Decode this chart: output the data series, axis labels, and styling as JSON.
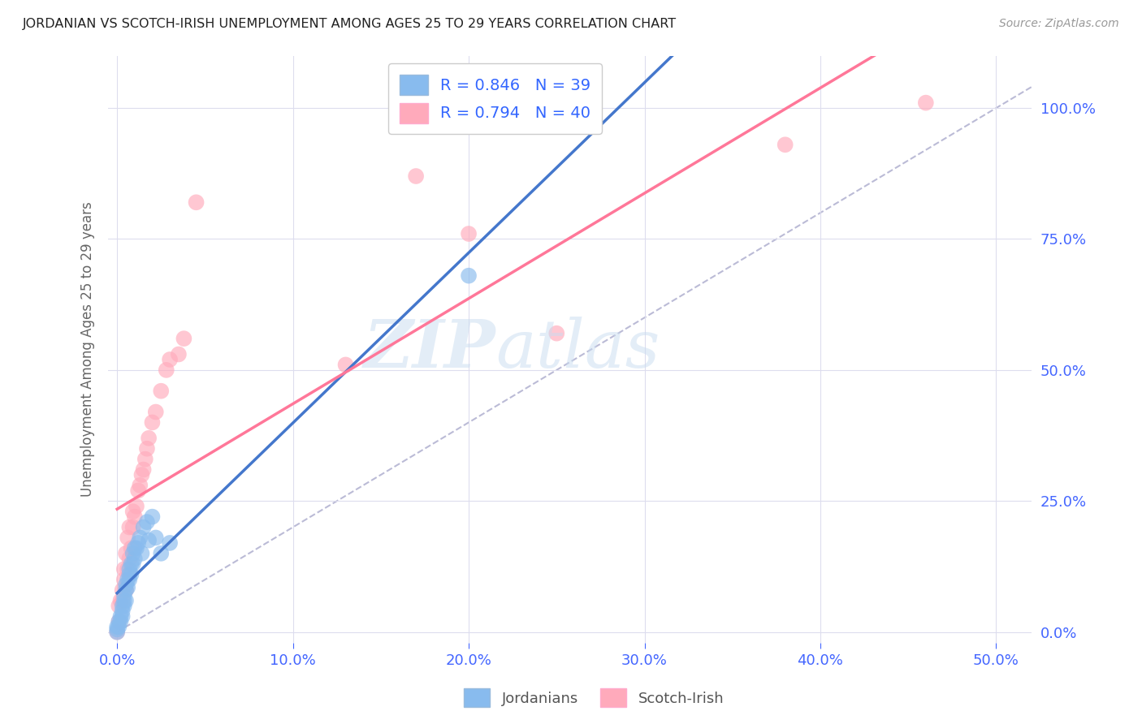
{
  "title": "JORDANIAN VS SCOTCH-IRISH UNEMPLOYMENT AMONG AGES 25 TO 29 YEARS CORRELATION CHART",
  "source": "Source: ZipAtlas.com",
  "ylabel": "Unemployment Among Ages 25 to 29 years",
  "x_ticks": [
    0.0,
    0.1,
    0.2,
    0.3,
    0.4,
    0.5
  ],
  "x_tick_labels": [
    "0.0%",
    "10.0%",
    "20.0%",
    "30.0%",
    "40.0%",
    "50.0%"
  ],
  "y_ticks": [
    0.0,
    0.25,
    0.5,
    0.75,
    1.0
  ],
  "y_tick_labels": [
    "0.0%",
    "25.0%",
    "50.0%",
    "75.0%",
    "100.0%"
  ],
  "xlim": [
    -0.005,
    0.52
  ],
  "ylim": [
    -0.02,
    1.1
  ],
  "jordanians_R": 0.846,
  "jordanians_N": 39,
  "scotchirish_R": 0.794,
  "scotchirish_N": 40,
  "jordanians_color": "#88BBEE",
  "scotchirish_color": "#FFAABB",
  "jordanians_line_color": "#4477CC",
  "scotchirish_line_color": "#FF7799",
  "background_color": "#FFFFFF",
  "grid_color": "#DDDDEE",
  "jordanians_x": [
    0.0,
    0.0,
    0.0,
    0.001,
    0.001,
    0.002,
    0.002,
    0.003,
    0.003,
    0.003,
    0.004,
    0.004,
    0.004,
    0.005,
    0.005,
    0.005,
    0.006,
    0.006,
    0.007,
    0.007,
    0.007,
    0.008,
    0.008,
    0.009,
    0.009,
    0.01,
    0.01,
    0.011,
    0.012,
    0.013,
    0.014,
    0.015,
    0.017,
    0.018,
    0.02,
    0.022,
    0.025,
    0.03,
    0.2
  ],
  "jordanians_y": [
    0.0,
    0.005,
    0.01,
    0.01,
    0.02,
    0.02,
    0.03,
    0.03,
    0.04,
    0.05,
    0.05,
    0.06,
    0.07,
    0.06,
    0.08,
    0.09,
    0.085,
    0.1,
    0.1,
    0.11,
    0.12,
    0.11,
    0.13,
    0.13,
    0.15,
    0.14,
    0.16,
    0.16,
    0.17,
    0.18,
    0.15,
    0.2,
    0.21,
    0.175,
    0.22,
    0.18,
    0.15,
    0.17,
    0.68
  ],
  "scotchirish_x": [
    0.0,
    0.001,
    0.001,
    0.002,
    0.003,
    0.003,
    0.004,
    0.004,
    0.005,
    0.005,
    0.006,
    0.006,
    0.007,
    0.007,
    0.008,
    0.009,
    0.009,
    0.01,
    0.011,
    0.012,
    0.013,
    0.014,
    0.015,
    0.016,
    0.017,
    0.018,
    0.02,
    0.022,
    0.025,
    0.028,
    0.03,
    0.035,
    0.038,
    0.045,
    0.13,
    0.17,
    0.2,
    0.25,
    0.38,
    0.46
  ],
  "scotchirish_y": [
    0.0,
    0.02,
    0.05,
    0.06,
    0.06,
    0.08,
    0.1,
    0.12,
    0.08,
    0.15,
    0.12,
    0.18,
    0.14,
    0.2,
    0.16,
    0.2,
    0.23,
    0.22,
    0.24,
    0.27,
    0.28,
    0.3,
    0.31,
    0.33,
    0.35,
    0.37,
    0.4,
    0.42,
    0.46,
    0.5,
    0.52,
    0.53,
    0.56,
    0.82,
    0.51,
    0.87,
    0.76,
    0.57,
    0.93,
    1.01
  ]
}
